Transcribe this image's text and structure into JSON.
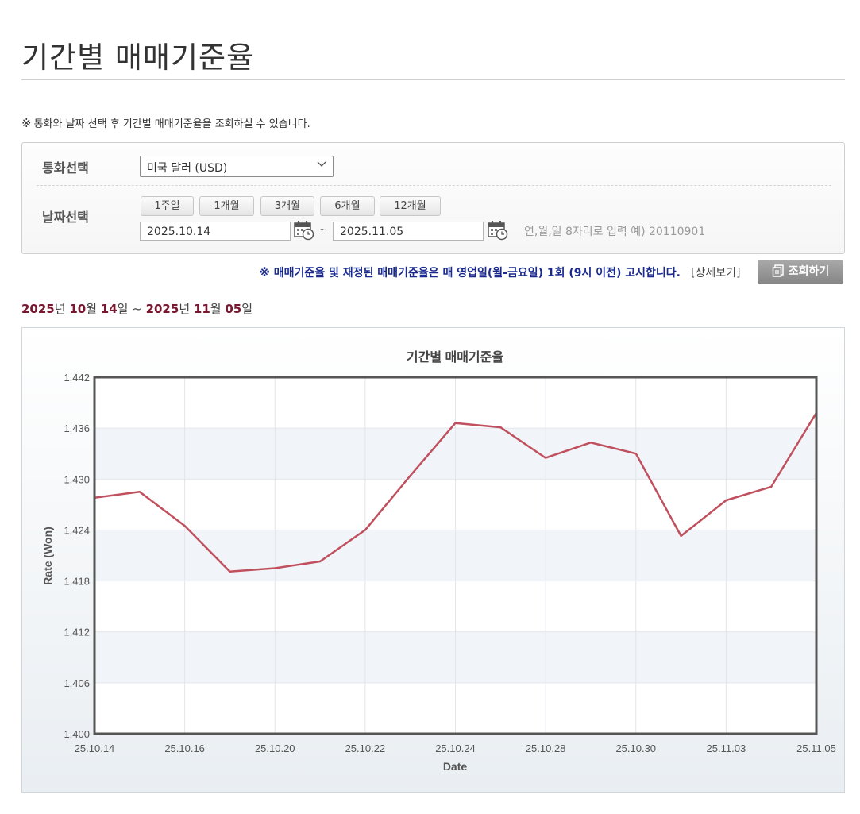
{
  "page_title": "기간별 매매기준율",
  "notice": {
    "mark": "※",
    "text": "통화와 날짜 선택 후 기간별 매매기준율을 조회하실 수 있습니다."
  },
  "form": {
    "currency_label": "통화선택",
    "currency_value": "미국 달러 (USD)",
    "date_label": "날짜선택",
    "period_buttons": [
      "1주일",
      "1개월",
      "3개월",
      "6개월",
      "12개월"
    ],
    "start_date": "2025.10.14",
    "end_date": "2025.11.05",
    "tilde": "~",
    "date_hint": "연,월,일 8자리로 입력 예) 20110901"
  },
  "notice2": "※ 매매기준율 및 재정된 매매기준율은 매 영업일(월-금요일) 1회 (9시 이전) 고시합니다.",
  "detail_link": "[상세보기]",
  "search_button": "조회하기",
  "period_text": {
    "y1": "2025",
    "y_unit1": "년 ",
    "m1": "10",
    "m_unit1": "월 ",
    "d1": "14",
    "d_unit1": "일 ~ ",
    "y2": "2025",
    "y_unit2": "년 ",
    "m2": "11",
    "m_unit2": "월 ",
    "d2": "05",
    "d_unit2": "일"
  },
  "chart_data": {
    "type": "line",
    "title": "기간별 매매기준율",
    "xlabel": "Date",
    "ylabel": "Rate (Won)",
    "ylim": [
      1400,
      1442
    ],
    "yticks": [
      "1,442",
      "1,436",
      "1,430",
      "1,424",
      "1,418",
      "1,412",
      "1,406",
      "1,400"
    ],
    "xtick_labels": [
      "25.10.14",
      "25.10.16",
      "25.10.20",
      "25.10.22",
      "25.10.24",
      "25.10.28",
      "25.10.30",
      "25.11.03",
      "25.11.05"
    ],
    "line_color": "#c0505e",
    "grid": true,
    "series": [
      {
        "x": [
          "25.10.14",
          "25.10.15",
          "25.10.16",
          "25.10.17",
          "25.10.20",
          "25.10.21",
          "25.10.22",
          "25.10.23",
          "25.10.24",
          "25.10.27",
          "25.10.28",
          "25.10.29",
          "25.10.30",
          "25.10.31",
          "25.11.03",
          "25.11.04",
          "25.11.05"
        ],
        "values": [
          1427.8,
          1428.5,
          1424.5,
          1419.1,
          1419.5,
          1420.3,
          1424.0,
          1430.4,
          1436.6,
          1436.1,
          1432.5,
          1434.3,
          1433.0,
          1423.3,
          1427.5,
          1429.1,
          1437.8
        ]
      }
    ]
  }
}
